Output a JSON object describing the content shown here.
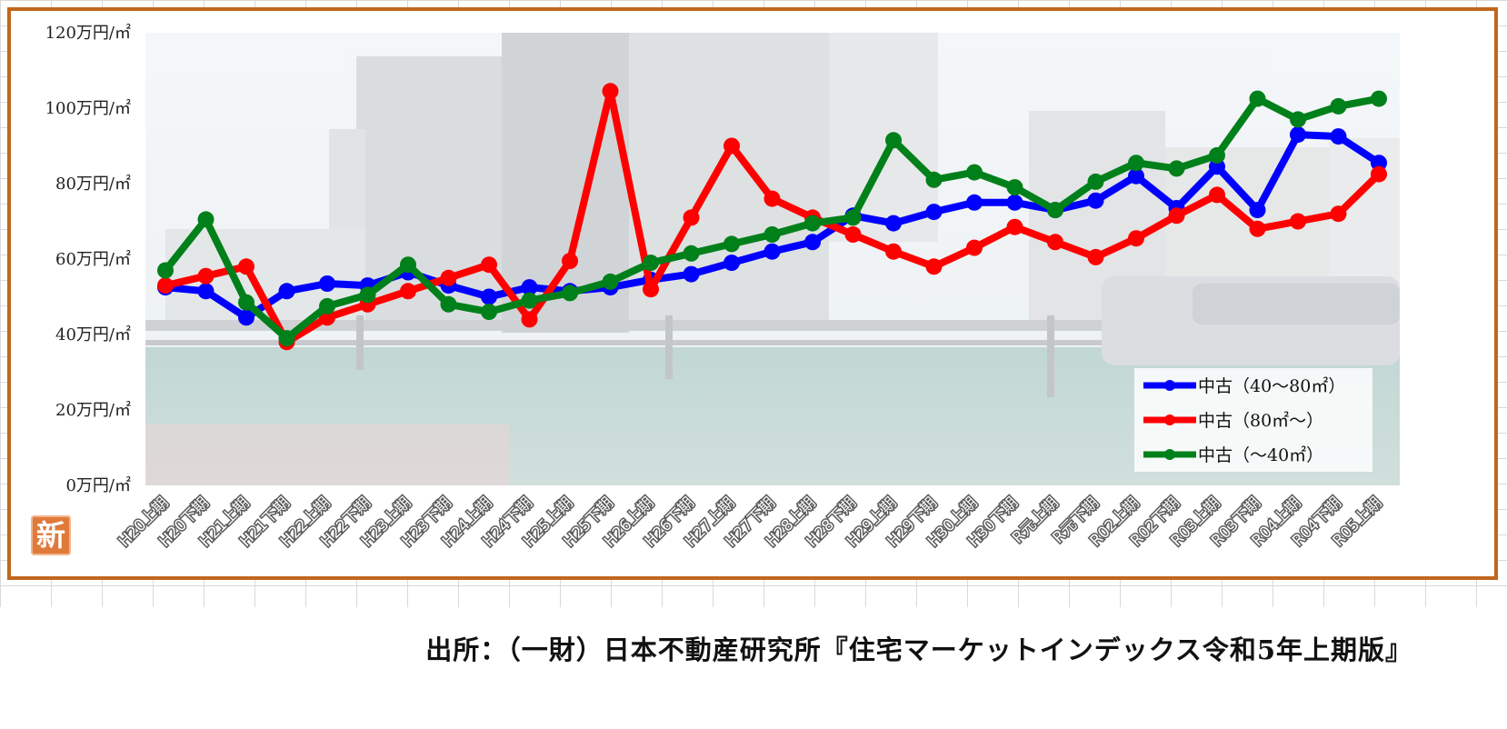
{
  "chart_data": {
    "type": "line",
    "categories": [
      "H20上期",
      "H20下期",
      "H21上期",
      "H21下期",
      "H22上期",
      "H22下期",
      "H23上期",
      "H23下期",
      "H24上期",
      "H24下期",
      "H25上期",
      "H25下期",
      "H26上期",
      "H26下期",
      "H27上期",
      "H27下期",
      "H28上期",
      "H28下期",
      "H29上期",
      "H29下期",
      "H30上期",
      "H30下期",
      "R元上期",
      "R元下期",
      "R02上期",
      "R02下期",
      "R03上期",
      "R03下期",
      "R04上期",
      "R04下期",
      "R05上期"
    ],
    "y_ticks": [
      "0万円/㎡",
      "20万円/㎡",
      "40万円/㎡",
      "60万円/㎡",
      "80万円/㎡",
      "100万円/㎡",
      "120万円/㎡"
    ],
    "ylim": [
      0,
      120
    ],
    "series": [
      {
        "name": "中古（40～80㎡）",
        "color": "#0000ff",
        "values": [
          52.5,
          51.5,
          44.5,
          51.5,
          53.5,
          53,
          56.5,
          53,
          50,
          52.5,
          51.5,
          52.5,
          54.5,
          56,
          59,
          62,
          64.5,
          71.5,
          69.5,
          72.5,
          75,
          75,
          73,
          75.5,
          82,
          73.5,
          84.5,
          73,
          93,
          92.5,
          85.5
        ]
      },
      {
        "name": "中古（80㎡～）",
        "color": "#ff0000",
        "values": [
          53,
          55.5,
          58,
          38,
          44.5,
          48,
          51.5,
          55,
          58.5,
          44,
          59.5,
          104.5,
          52,
          71,
          90,
          76,
          71,
          66.5,
          62,
          58,
          63,
          68.5,
          64.5,
          60.5,
          65.5,
          71.5,
          77,
          68,
          70,
          72,
          82.5
        ]
      },
      {
        "name": "中古（～40㎡）",
        "color": "#00801a",
        "values": [
          57,
          70.5,
          48.5,
          39,
          47.5,
          50.5,
          58.5,
          48,
          46,
          49,
          51,
          54,
          59,
          61.5,
          64,
          66.5,
          69.5,
          71,
          91.5,
          81,
          83,
          79,
          73,
          80.5,
          85.5,
          84,
          87.5,
          102.5,
          97,
          100.5,
          102.5
        ]
      }
    ],
    "legend": "bottom-right",
    "grid": false
  },
  "badge": {
    "label": "新"
  },
  "source": {
    "text": "出所：（一財）日本不動産研究所『住宅マーケットインデックス令和5年上期版』"
  }
}
